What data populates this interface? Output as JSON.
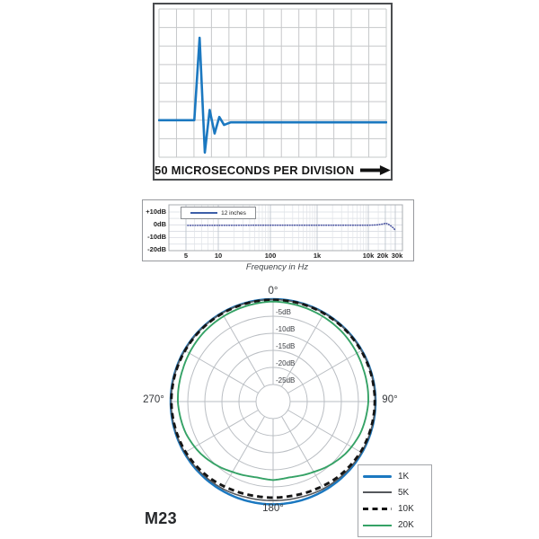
{
  "page": {
    "background": "#ffffff",
    "model_name": "M23"
  },
  "chart_data": [
    {
      "id": "impulse-response",
      "type": "line",
      "title": "",
      "xlabel": "50 MICROSECONDS PER DIVISION",
      "x_unit": "divisions of 50 microseconds",
      "grid": {
        "cols": 13,
        "rows": 8,
        "baseline_row": 6,
        "on": true,
        "color": "#c6c8ca"
      },
      "trace_color": "#1b78c0",
      "arrow_icon": "right-arrow",
      "points_div": [
        [
          0,
          0
        ],
        [
          2.02,
          0
        ],
        [
          2.32,
          4.45
        ],
        [
          2.62,
          -1.75
        ],
        [
          2.9,
          0.55
        ],
        [
          3.18,
          -0.72
        ],
        [
          3.45,
          0.17
        ],
        [
          3.72,
          -0.26
        ],
        [
          4.1,
          -0.12
        ],
        [
          4.6,
          -0.12
        ],
        [
          13,
          -0.12
        ]
      ]
    },
    {
      "id": "frequency-response",
      "type": "line",
      "xscale": "log",
      "xlabel": "Frequency in Hz",
      "ylabel": "dB",
      "ylim": [
        -20,
        10
      ],
      "xlim": [
        3.5,
        31000
      ],
      "grid": {
        "on": true
      },
      "legend_position": "top-left",
      "yticks": [
        {
          "value": 10,
          "label": "+10dB"
        },
        {
          "value": 0,
          "label": "0dB"
        },
        {
          "value": -10,
          "label": "-10dB"
        },
        {
          "value": -20,
          "label": "-20dB"
        }
      ],
      "xticks": [
        {
          "value": 5,
          "label": "5"
        },
        {
          "value": 10,
          "label": "10"
        },
        {
          "value": 100,
          "label": "100"
        },
        {
          "value": 1000,
          "label": "1k"
        },
        {
          "value": 10000,
          "label": "10k"
        },
        {
          "value": 20000,
          "label": "20k"
        },
        {
          "value": 30000,
          "label": "30k"
        }
      ],
      "series": [
        {
          "name": "12 inches",
          "color": "#4c56a3",
          "style": "dotted",
          "points": [
            [
              5.2,
              -0.4
            ],
            [
              10,
              -0.35
            ],
            [
              100,
              -0.3
            ],
            [
              1000,
              -0.3
            ],
            [
              10000,
              -0.3
            ],
            [
              14000,
              -0.1
            ],
            [
              18000,
              0.6
            ],
            [
              20000,
              1.2
            ],
            [
              22000,
              0.9
            ],
            [
              25000,
              -0.8
            ],
            [
              28000,
              -2.5
            ],
            [
              30000,
              -4.2
            ]
          ]
        }
      ]
    },
    {
      "id": "polar-pattern",
      "type": "line",
      "coordinate": "polar",
      "title": "M23",
      "ring_step_db": 5,
      "min_db": -30,
      "rings_db": [
        0,
        -5,
        -10,
        -15,
        -20,
        -25
      ],
      "ring_labels": [
        "-5dB",
        "-10dB",
        "-15dB",
        "-20dB",
        "-25dB"
      ],
      "angle_labels": [
        "0°",
        "90°",
        "180°",
        "270°"
      ],
      "spoke_step_deg": 30,
      "legend_position": "bottom-right",
      "series": [
        {
          "name": "1K",
          "color": "#1b78c0",
          "width": 2.5,
          "dash": "",
          "points_deg_db": [
            [
              0,
              0
            ],
            [
              90,
              0
            ],
            [
              180,
              0.1
            ]
          ]
        },
        {
          "name": "5K",
          "color": "#55585c",
          "width": 1.6,
          "dash": "",
          "points_deg_db": [
            [
              0,
              -0.1
            ],
            [
              90,
              -0.1
            ],
            [
              120,
              -0.15
            ],
            [
              150,
              -0.5
            ],
            [
              165,
              -0.9
            ],
            [
              180,
              -1.0
            ]
          ]
        },
        {
          "name": "10K",
          "color": "#161616",
          "width": 2.9,
          "dash": "6.5 4.5",
          "points_deg_db": [
            [
              0,
              -0.2
            ],
            [
              90,
              -0.2
            ],
            [
              120,
              -0.4
            ],
            [
              140,
              -0.9
            ],
            [
              155,
              -1.5
            ],
            [
              170,
              -1.85
            ],
            [
              180,
              -1.85
            ]
          ]
        },
        {
          "name": "20K",
          "color": "#35a266",
          "width": 1.9,
          "dash": "",
          "points_deg_db": [
            [
              0,
              -0.7
            ],
            [
              20,
              -1.0
            ],
            [
              45,
              -1.3
            ],
            [
              70,
              -1.9
            ],
            [
              90,
              -2.1
            ],
            [
              110,
              -2.8
            ],
            [
              125,
              -3.8
            ],
            [
              140,
              -5.2
            ],
            [
              150,
              -6.2
            ],
            [
              160,
              -6.9
            ],
            [
              168,
              -7.3
            ],
            [
              174,
              -7.2
            ],
            [
              180,
              -7.0
            ]
          ]
        }
      ]
    }
  ]
}
